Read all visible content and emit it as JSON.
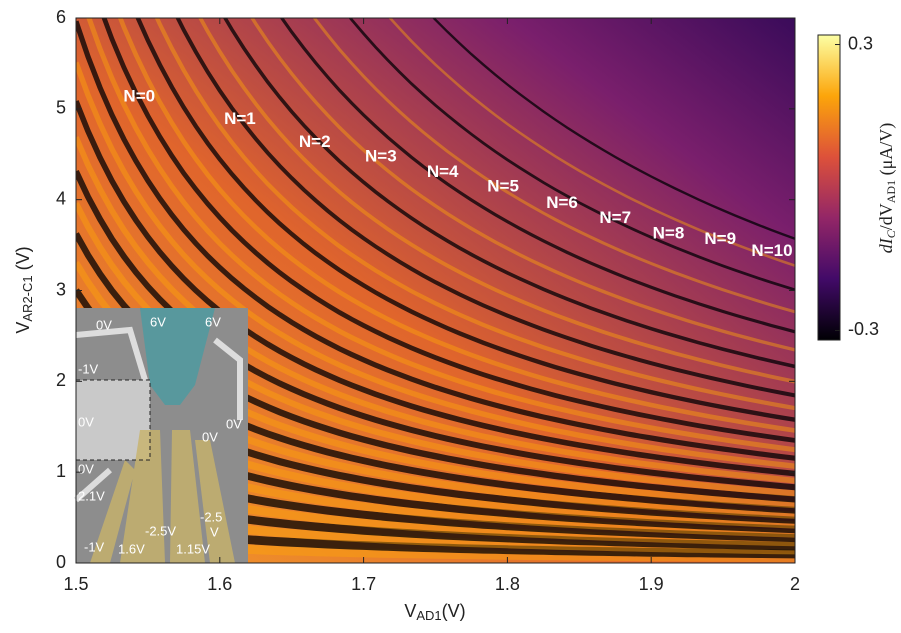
{
  "chart_data": {
    "type": "heatmap",
    "x_label": {
      "main": "V",
      "sub": "AD1",
      "unit": "(V)"
    },
    "y_label": {
      "main": "V",
      "sub": "AR2-C1",
      "unit": " (V)"
    },
    "colorbar_label": {
      "main": "dI",
      "sub1": "C",
      "mid": "/dV",
      "sub2": "AD1",
      "unit": " (μA/V)"
    },
    "xlim": [
      1.5,
      2
    ],
    "xticks": [
      1.5,
      1.6,
      1.7,
      1.8,
      1.9,
      2
    ],
    "ylim": [
      0,
      6
    ],
    "yticks": [
      0,
      1,
      2,
      3,
      4,
      5,
      6
    ],
    "clim": [
      -0.32,
      0.32
    ],
    "cticks": [
      -0.3,
      0.3
    ],
    "colormap": [
      "#000004",
      "#420a68",
      "#932667",
      "#dd513a",
      "#fca50a",
      "#fcffa4"
    ],
    "annotations": [
      {
        "text": "N=0",
        "x": 1.544,
        "y": 5.13
      },
      {
        "text": "N=1",
        "x": 1.614,
        "y": 4.88
      },
      {
        "text": "N=2",
        "x": 1.666,
        "y": 4.63
      },
      {
        "text": "N=3",
        "x": 1.712,
        "y": 4.47
      },
      {
        "text": "N=4",
        "x": 1.755,
        "y": 4.3
      },
      {
        "text": "N=5",
        "x": 1.797,
        "y": 4.14
      },
      {
        "text": "N=6",
        "x": 1.838,
        "y": 3.96
      },
      {
        "text": "N=7",
        "x": 1.875,
        "y": 3.79
      },
      {
        "text": "N=8",
        "x": 1.912,
        "y": 3.62
      },
      {
        "text": "N=9",
        "x": 1.948,
        "y": 3.56
      },
      {
        "text": "N=10",
        "x": 1.984,
        "y": 3.43
      }
    ]
  },
  "inset": {
    "labels": [
      "0V",
      "6V",
      "6V",
      "-1V",
      "0V",
      "0V",
      "0V",
      "0V",
      "2.1V",
      "-2.5V",
      "-2.5",
      "V",
      "-1V",
      "1.6V",
      "1.15V"
    ]
  }
}
